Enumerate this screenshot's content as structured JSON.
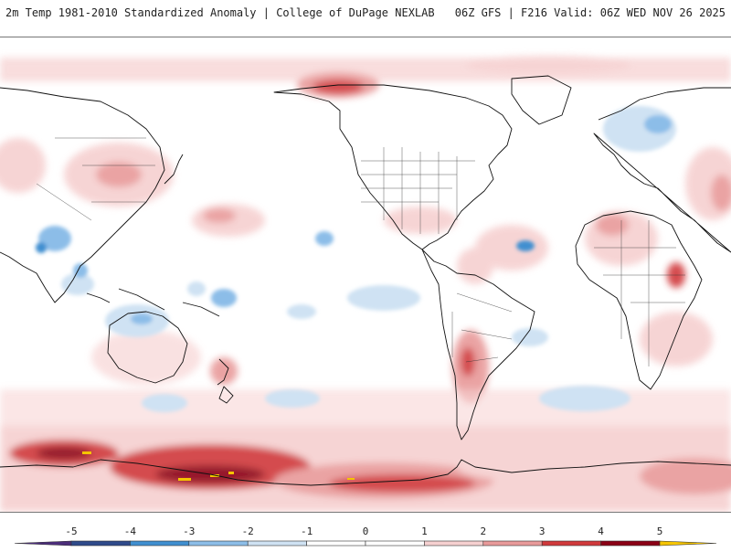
{
  "header": {
    "title_left": "2m Temp 1981-2010 Standardized Anomaly | College of DuPage NEXLAB",
    "title_right": "06Z GFS | F216 Valid: 06Z WED NOV 26 2025"
  },
  "map": {
    "projection": "global equirectangular",
    "description_icon": "world-map-icon"
  },
  "legend": {
    "ticks": [
      "-5",
      "-4",
      "-3",
      "-2",
      "-1",
      "0",
      "1",
      "2",
      "3",
      "4",
      "5"
    ],
    "colors": [
      "#4b2d7a",
      "#2e4a8a",
      "#3f8fd0",
      "#8cbde8",
      "#cfe2f3",
      "#ffffff",
      "#ffffff",
      "#f6d0d0",
      "#e89a9a",
      "#d0393b",
      "#8b0015",
      "#f5c400"
    ]
  }
}
